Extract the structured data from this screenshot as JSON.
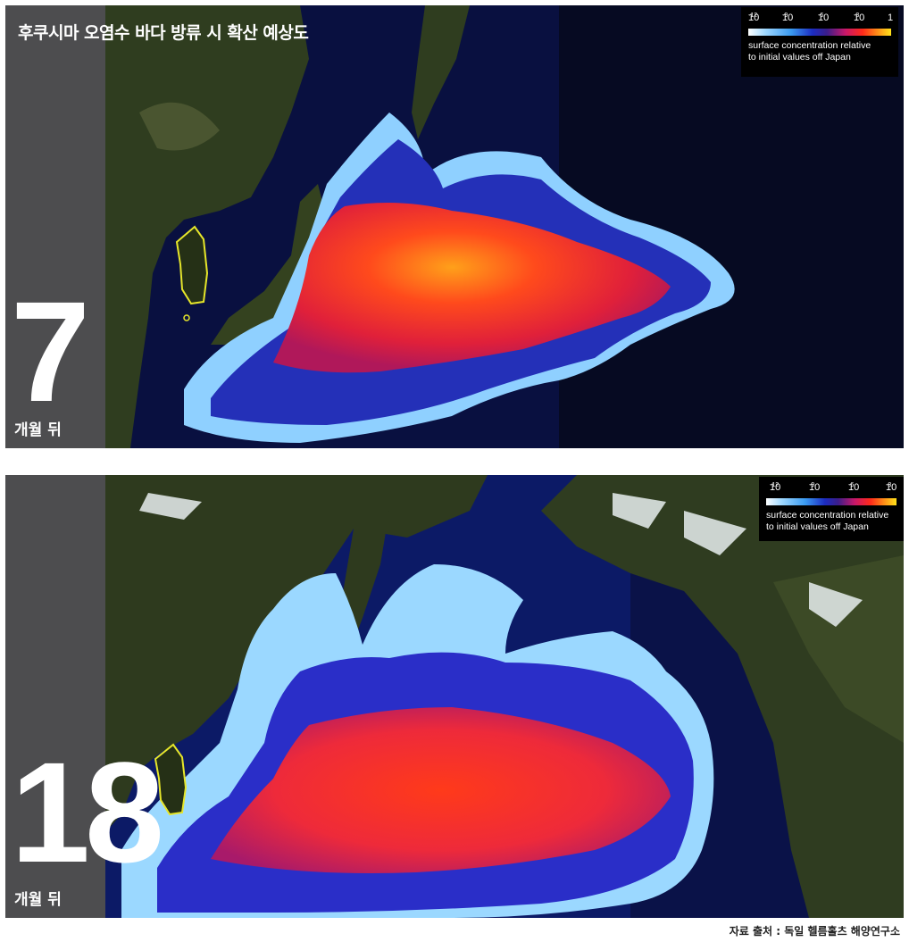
{
  "title": "후쿠시마 오염수 바다 방류 시 확산 예상도",
  "panels": [
    {
      "number": "7",
      "unit": "개월 뒤",
      "legend": {
        "ticks": [
          "10",
          "10",
          "10",
          "10",
          "1"
        ],
        "exponents": [
          "-12",
          "-9",
          "-6",
          "-3",
          ""
        ],
        "line1": "surface concentration relative",
        "line2": "to initial values off Japan"
      }
    },
    {
      "number": "18",
      "unit": "개월 뒤",
      "legend": {
        "ticks": [
          "10",
          "10",
          "10",
          "10"
        ],
        "exponents": [
          "-12",
          "-9",
          "-6",
          "-3"
        ],
        "line1": "surface concentration relative",
        "line2": "to initial values off Japan"
      }
    }
  ],
  "source": "자료 출처 : 독일 헬름홀츠 해양연구소",
  "colors": {
    "sidebar": "#4d4d4f",
    "ocean": "#0b1550",
    "land": "#2f3a1e",
    "korea_outline": "#e6e62a",
    "plume_high": "#ff3a1a",
    "plume_peak": "#ff9a1a",
    "plume_mid": "#2a2ec8",
    "plume_low": "#8fd0ff"
  }
}
